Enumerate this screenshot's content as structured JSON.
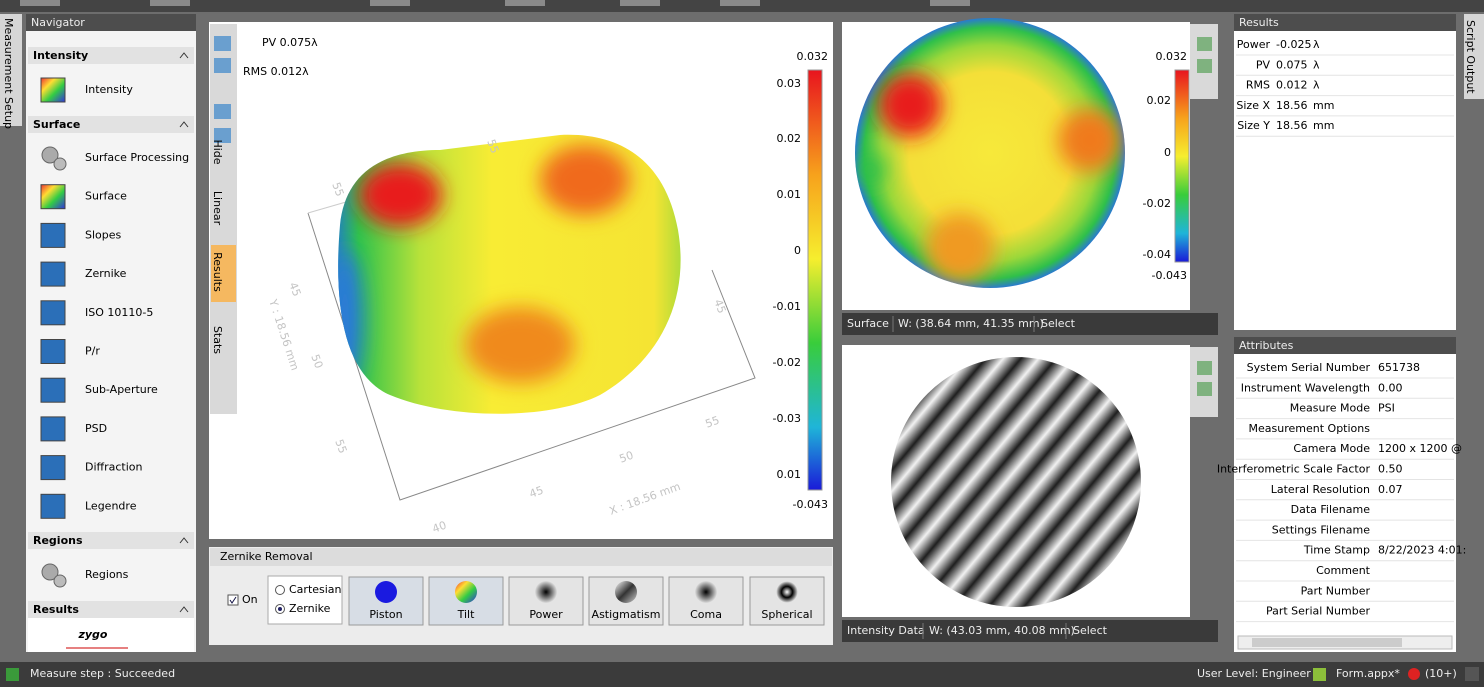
{
  "side_tabs": {
    "left": "Measurement Setup",
    "right": "Script Output"
  },
  "navigator": {
    "title": "Navigator",
    "sections": [
      {
        "title": "Intensity",
        "items": [
          "Intensity"
        ]
      },
      {
        "title": "Surface",
        "items": [
          "Surface Processing",
          "Surface",
          "Slopes",
          "Zernike",
          "ISO 10110-5",
          "P/r",
          "Sub-Aperture",
          "PSD",
          "Diffraction",
          "Legendre"
        ]
      },
      {
        "title": "Regions",
        "items": [
          "Regions"
        ]
      },
      {
        "title": "Results"
      }
    ],
    "logo": "zygo"
  },
  "view_3d": {
    "overlay": [
      "PV 0.075λ",
      "RMS 0.012λ"
    ],
    "colorbar_labels": [
      "0.032",
      "0.03",
      "0.02",
      "0.01",
      "0",
      "-0.01",
      "-0.02",
      "-0.03",
      "0.01",
      "-0.043"
    ],
    "axis_labels": [
      "55",
      "45",
      "50",
      "55",
      "Y : 18.56 mm",
      "40",
      "45",
      "50",
      "55",
      "X : 18.56 mm",
      "55",
      "45"
    ],
    "side_tabs": [
      "Hide",
      "Linear",
      "Results",
      "Stats"
    ]
  },
  "zernike": {
    "title": "Zernike Removal",
    "checkbox": "On",
    "modes": [
      "Cartesian",
      "Zernike"
    ],
    "buttons": [
      "Piston",
      "Tilt",
      "Power",
      "Astigmatism",
      "Coma",
      "Spherical"
    ]
  },
  "surface_view": {
    "colorbar_labels": [
      "0.032",
      "0.02",
      "0",
      "-0.02",
      "-0.04",
      "-0.043"
    ],
    "footer": [
      "Surface",
      "W: (38.64 mm, 41.35 mm)",
      "Select"
    ]
  },
  "intensity_view": {
    "footer": [
      "Intensity Data",
      "W: (43.03 mm, 40.08 mm)",
      "Select"
    ]
  },
  "results": {
    "title": "Results",
    "rows": [
      [
        "Power",
        "-0.025",
        "λ"
      ],
      [
        "PV",
        "0.075",
        "λ"
      ],
      [
        "RMS",
        "0.012",
        "λ"
      ],
      [
        "Size X",
        "18.56",
        "mm"
      ],
      [
        "Size Y",
        "18.56",
        "mm"
      ]
    ]
  },
  "attributes": {
    "title": "Attributes",
    "rows": [
      [
        "System Serial Number",
        "651738"
      ],
      [
        "Instrument Wavelength",
        "0.00"
      ],
      [
        "Measure Mode",
        "PSI"
      ],
      [
        "Measurement Options"
      ],
      [
        "Camera Mode",
        "1200 x 1200 @"
      ],
      [
        "Interferometric Scale Factor",
        "0.50"
      ],
      [
        "Lateral Resolution",
        "0.07"
      ],
      [
        "Data Filename"
      ],
      [
        "Settings Filename"
      ],
      [
        "Time Stamp",
        "8/22/2023 4:01:"
      ],
      [
        "Comment"
      ],
      [
        "Part Number"
      ],
      [
        "Part Serial Number"
      ]
    ]
  },
  "status_bar": {
    "message": "Measure step : Succeeded",
    "user_level": "User Level: Engineer",
    "file": "Form.appx*",
    "count": "(10+)"
  }
}
